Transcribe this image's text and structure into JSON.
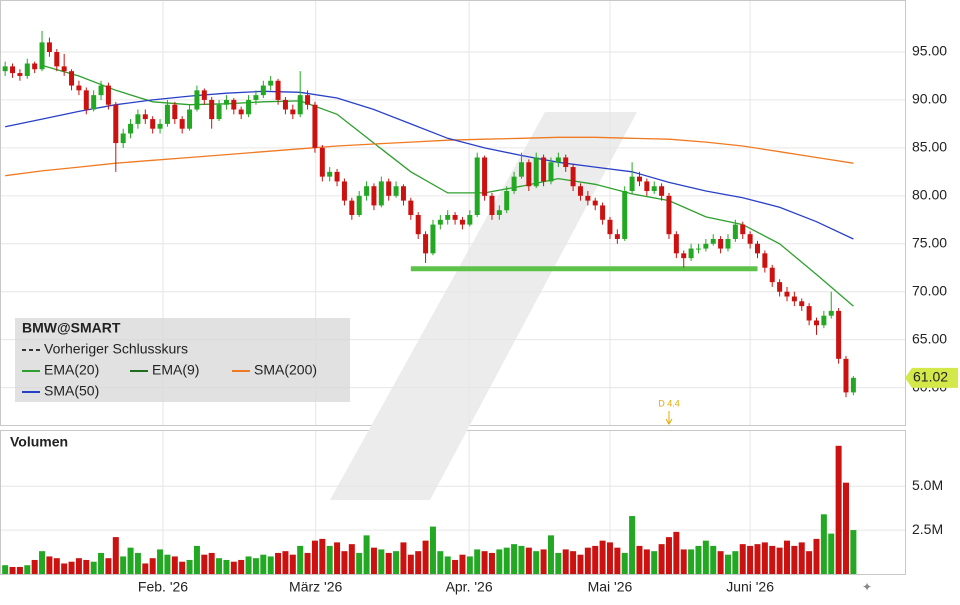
{
  "chart_data": {
    "type": "candlestick",
    "symbol": "BMW@SMART",
    "volume_title": "Volumen",
    "xlim": [
      -0.7,
      122
    ],
    "xticks": [
      {
        "value": 21.4,
        "label": "Feb. '26"
      },
      {
        "value": 42.1,
        "label": "März '26"
      },
      {
        "value": 62.9,
        "label": "Apr. '26"
      },
      {
        "value": 82,
        "label": "Mai '26"
      },
      {
        "value": 101,
        "label": "Juni '26"
      }
    ],
    "ylim": [
      56.1,
      99.9
    ],
    "yticks": [
      {
        "value": 60,
        "label": "60.00"
      },
      {
        "value": 65,
        "label": "65.00"
      },
      {
        "value": 70,
        "label": "70.00"
      },
      {
        "value": 75,
        "label": "75.00"
      },
      {
        "value": 80,
        "label": "80.00"
      },
      {
        "value": 85,
        "label": "85.00"
      },
      {
        "value": 90,
        "label": "90.00"
      },
      {
        "value": 95,
        "label": "95.00"
      }
    ],
    "volume_ylim": [
      0,
      8.2
    ],
    "volume_yticks": [
      {
        "value": 2.5,
        "label": "2.5M"
      },
      {
        "value": 5,
        "label": "5.0M"
      }
    ],
    "up_color": "#22a822",
    "down_color": "#cc1111",
    "last_price": 61.02,
    "candles": [
      [
        93.0,
        94.0,
        92.5,
        93.5
      ],
      [
        93.5,
        93.8,
        92.3,
        92.8
      ],
      [
        92.8,
        93.2,
        92.0,
        92.5
      ],
      [
        92.5,
        94.3,
        92.2,
        93.8
      ],
      [
        93.8,
        94.0,
        92.8,
        93.2
      ],
      [
        93.2,
        97.2,
        93.0,
        96.0
      ],
      [
        96.0,
        96.5,
        94.5,
        95.0
      ],
      [
        95.0,
        95.3,
        93.0,
        93.5
      ],
      [
        93.5,
        94.8,
        92.5,
        93.0
      ],
      [
        93.0,
        93.2,
        91.0,
        91.5
      ],
      [
        91.5,
        92.0,
        90.5,
        91.0
      ],
      [
        91.0,
        91.3,
        88.5,
        89.0
      ],
      [
        89.0,
        91.0,
        88.8,
        90.5
      ],
      [
        90.5,
        92.0,
        90.0,
        91.5
      ],
      [
        91.5,
        91.8,
        89.0,
        89.5
      ],
      [
        89.5,
        89.8,
        82.5,
        85.5
      ],
      [
        85.5,
        87.0,
        85.0,
        86.5
      ],
      [
        86.5,
        88.0,
        86.0,
        87.5
      ],
      [
        87.5,
        89.0,
        87.0,
        88.5
      ],
      [
        88.5,
        89.0,
        87.5,
        88.0
      ],
      [
        88.0,
        88.3,
        86.5,
        87.0
      ],
      [
        87.0,
        88.0,
        86.5,
        87.5
      ],
      [
        87.5,
        90.0,
        87.2,
        89.5
      ],
      [
        89.5,
        89.8,
        87.5,
        88.0
      ],
      [
        88.0,
        88.3,
        86.5,
        87.0
      ],
      [
        87.0,
        89.5,
        86.8,
        89.0
      ],
      [
        89.0,
        91.5,
        88.8,
        91.0
      ],
      [
        91.0,
        91.2,
        89.5,
        90.0
      ],
      [
        90.0,
        90.3,
        87.0,
        88.0
      ],
      [
        88.0,
        90.0,
        87.8,
        89.5
      ],
      [
        89.5,
        90.5,
        89.0,
        90.0
      ],
      [
        90.0,
        90.2,
        88.5,
        89.0
      ],
      [
        89.0,
        89.3,
        88.0,
        88.5
      ],
      [
        88.5,
        90.5,
        88.2,
        90.0
      ],
      [
        90.0,
        91.0,
        89.5,
        90.5
      ],
      [
        90.5,
        92.0,
        90.2,
        91.5
      ],
      [
        91.5,
        92.5,
        91.0,
        92.0
      ],
      [
        92.0,
        92.2,
        89.5,
        90.0
      ],
      [
        90.0,
        90.3,
        88.5,
        89.0
      ],
      [
        89.0,
        89.5,
        88.0,
        88.5
      ],
      [
        88.5,
        93.0,
        88.2,
        90.5
      ],
      [
        90.5,
        91.0,
        89.0,
        89.5
      ],
      [
        89.5,
        89.8,
        84.5,
        85.0
      ],
      [
        85.0,
        85.3,
        81.5,
        82.0
      ],
      [
        82.0,
        83.0,
        81.5,
        82.5
      ],
      [
        82.5,
        82.8,
        81.0,
        81.5
      ],
      [
        81.5,
        81.8,
        79.0,
        79.5
      ],
      [
        79.5,
        79.8,
        77.5,
        78.0
      ],
      [
        78.0,
        80.5,
        77.8,
        80.0
      ],
      [
        80.0,
        81.5,
        79.5,
        81.0
      ],
      [
        81.0,
        81.3,
        78.5,
        79.0
      ],
      [
        79.0,
        82.0,
        78.8,
        81.5
      ],
      [
        81.5,
        81.8,
        79.5,
        80.0
      ],
      [
        80.0,
        81.5,
        79.8,
        81.0
      ],
      [
        81.0,
        81.2,
        79.0,
        79.5
      ],
      [
        79.5,
        79.8,
        77.5,
        78.0
      ],
      [
        78.0,
        78.3,
        75.5,
        76.0
      ],
      [
        76.0,
        76.3,
        73.0,
        74.0
      ],
      [
        74.0,
        77.5,
        73.8,
        77.0
      ],
      [
        77.0,
        78.0,
        76.5,
        77.5
      ],
      [
        77.5,
        78.5,
        77.0,
        78.0
      ],
      [
        78.0,
        78.3,
        77.0,
        77.5
      ],
      [
        77.5,
        77.8,
        76.5,
        77.0
      ],
      [
        77.0,
        78.5,
        76.8,
        78.0
      ],
      [
        78.0,
        84.5,
        77.8,
        84.0
      ],
      [
        84.0,
        84.2,
        79.5,
        80.0
      ],
      [
        80.0,
        80.3,
        77.5,
        78.0
      ],
      [
        78.0,
        79.0,
        77.5,
        78.5
      ],
      [
        78.5,
        81.0,
        78.2,
        80.5
      ],
      [
        80.5,
        82.5,
        80.2,
        82.0
      ],
      [
        82.0,
        84.5,
        81.8,
        83.5
      ],
      [
        83.5,
        83.8,
        80.5,
        81.0
      ],
      [
        81.0,
        84.5,
        80.8,
        84.0
      ],
      [
        84.0,
        84.3,
        81.0,
        81.5
      ],
      [
        81.5,
        84.0,
        81.2,
        83.5
      ],
      [
        83.5,
        84.5,
        83.0,
        84.0
      ],
      [
        84.0,
        84.3,
        82.5,
        83.0
      ],
      [
        83.0,
        83.3,
        80.5,
        81.0
      ],
      [
        81.0,
        81.3,
        79.5,
        80.0
      ],
      [
        80.0,
        80.5,
        79.0,
        79.5
      ],
      [
        79.5,
        79.8,
        78.5,
        79.0
      ],
      [
        79.0,
        79.3,
        77.0,
        77.5
      ],
      [
        77.5,
        77.8,
        75.5,
        76.0
      ],
      [
        76.0,
        76.5,
        75.0,
        75.5
      ],
      [
        75.5,
        81.0,
        75.3,
        80.5
      ],
      [
        80.5,
        83.5,
        80.2,
        82.0
      ],
      [
        82.0,
        82.5,
        81.0,
        81.5
      ],
      [
        81.5,
        81.8,
        80.0,
        80.5
      ],
      [
        80.5,
        81.5,
        80.2,
        81.0
      ],
      [
        81.0,
        81.3,
        79.5,
        80.0
      ],
      [
        80.0,
        80.3,
        75.5,
        76.0
      ],
      [
        76.0,
        76.3,
        73.5,
        74.0
      ],
      [
        74.0,
        74.3,
        72.5,
        73.5
      ],
      [
        73.5,
        75.0,
        73.2,
        74.5
      ],
      [
        74.5,
        75.0,
        74.0,
        74.5
      ],
      [
        74.5,
        75.5,
        74.2,
        75.0
      ],
      [
        75.0,
        76.0,
        74.8,
        75.5
      ],
      [
        75.5,
        75.8,
        74.0,
        74.5
      ],
      [
        74.5,
        76.0,
        74.2,
        75.5
      ],
      [
        75.5,
        77.5,
        75.2,
        77.0
      ],
      [
        77.0,
        77.3,
        75.5,
        76.0
      ],
      [
        76.0,
        76.3,
        74.5,
        75.0
      ],
      [
        75.0,
        75.3,
        73.5,
        74.0
      ],
      [
        74.0,
        74.3,
        72.0,
        72.5
      ],
      [
        72.5,
        72.8,
        70.5,
        71.0
      ],
      [
        71.0,
        71.3,
        69.5,
        70.0
      ],
      [
        70.0,
        70.5,
        69.0,
        69.5
      ],
      [
        69.5,
        70.0,
        68.5,
        69.0
      ],
      [
        69.0,
        69.3,
        68.0,
        68.5
      ],
      [
        68.5,
        68.8,
        66.5,
        67.0
      ],
      [
        67.0,
        67.3,
        65.5,
        66.5
      ],
      [
        66.5,
        68.0,
        66.2,
        67.5
      ],
      [
        67.5,
        70.0,
        67.2,
        68.0
      ],
      [
        68.0,
        68.3,
        62.5,
        63.0
      ],
      [
        63.0,
        63.3,
        59.0,
        59.5
      ],
      [
        59.5,
        61.2,
        59.2,
        61.02
      ]
    ],
    "volume": [
      0.5,
      0.4,
      0.4,
      0.5,
      0.8,
      1.3,
      1.0,
      0.9,
      0.6,
      0.7,
      0.9,
      0.8,
      0.7,
      1.2,
      0.9,
      2.1,
      1.0,
      1.5,
      1.2,
      0.6,
      0.9,
      1.4,
      1.1,
      1.0,
      0.7,
      0.8,
      1.6,
      1.1,
      1.2,
      0.9,
      0.8,
      0.7,
      0.8,
      1.0,
      0.9,
      1.1,
      1.0,
      1.2,
      1.3,
      1.1,
      1.6,
      1.2,
      1.9,
      2.0,
      1.6,
      1.8,
      1.3,
      1.7,
      1.2,
      2.2,
      1.5,
      1.4,
      1.2,
      1.3,
      1.8,
      1.1,
      1.3,
      1.9,
      2.7,
      1.3,
      1.0,
      0.8,
      1.1,
      1.0,
      1.4,
      1.3,
      1.2,
      1.4,
      1.5,
      1.7,
      1.6,
      1.5,
      1.3,
      1.4,
      2.2,
      1.2,
      1.4,
      1.3,
      1.1,
      1.5,
      1.6,
      1.9,
      1.8,
      1.5,
      1.2,
      3.3,
      1.6,
      1.4,
      1.3,
      1.7,
      2.1,
      2.4,
      1.4,
      1.4,
      1.6,
      1.9,
      1.6,
      1.3,
      1.1,
      1.3,
      1.7,
      1.6,
      1.7,
      1.8,
      1.6,
      1.5,
      1.9,
      1.6,
      1.8,
      1.3,
      2.0,
      3.4,
      2.3,
      7.3,
      5.2,
      2.5
    ],
    "ma_x": [
      0,
      5,
      10,
      15,
      20,
      25,
      30,
      35,
      40,
      45,
      50,
      55,
      60,
      65,
      70,
      75,
      80,
      85,
      90,
      95,
      100,
      105,
      110,
      115
    ],
    "series": [
      {
        "name": "EMA(20)",
        "color": "#2ea02e",
        "values": [
          null,
          93.6,
          92.5,
          91.0,
          89.8,
          89.5,
          89.6,
          89.8,
          89.9,
          88.5,
          85.5,
          82.5,
          80.3,
          80.3,
          81.0,
          81.8,
          81.2,
          80.2,
          79.5,
          77.8,
          77.0,
          75.0,
          71.8,
          68.5
        ]
      },
      {
        "name": "SMA(200)",
        "color": "#f07a22",
        "values": [
          82.1,
          82.6,
          83.0,
          83.4,
          83.7,
          84.0,
          84.3,
          84.6,
          84.9,
          85.2,
          85.4,
          85.6,
          85.8,
          85.9,
          86.0,
          86.1,
          86.1,
          86.0,
          85.9,
          85.6,
          85.2,
          84.6,
          84.0,
          83.4
        ]
      },
      {
        "name": "SMA(50)",
        "color": "#2840c8",
        "values": [
          87.2,
          88.0,
          88.8,
          89.5,
          90.0,
          90.4,
          90.7,
          90.9,
          90.8,
          90.2,
          89.0,
          87.5,
          86.0,
          85.0,
          84.2,
          83.5,
          83.0,
          82.5,
          81.4,
          80.5,
          79.8,
          78.8,
          77.3,
          75.5
        ]
      }
    ],
    "legend_extra": [
      {
        "name": "Vorheriger Schlusskurs",
        "color": "#333333"
      },
      {
        "name": "EMA(9)",
        "color": "#1e6e1e"
      }
    ],
    "support_line": {
      "value": 72.4,
      "from": 55,
      "to": 102,
      "color": "#5cc24a"
    },
    "annotation": {
      "text": "D 4.4",
      "x": 90,
      "color": "#e8a800"
    }
  }
}
